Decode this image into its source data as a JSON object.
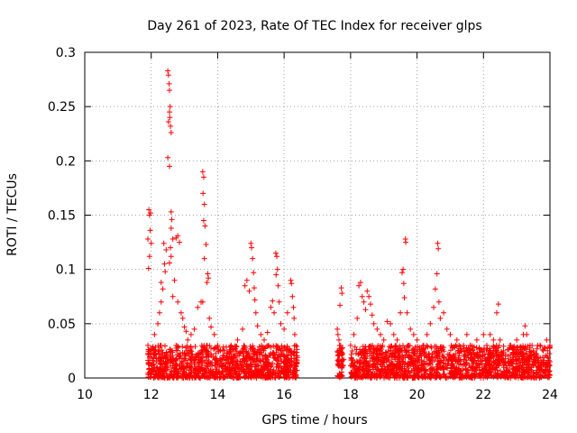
{
  "chart_data": {
    "type": "scatter",
    "title": "Day 261 of 2023, Rate Of TEC Index for receiver glps",
    "xlabel": "GPS time / hours",
    "ylabel": "ROTI / TECUs",
    "xlim": [
      10,
      24
    ],
    "ylim": [
      0,
      0.3
    ],
    "xticks": [
      10,
      12,
      14,
      16,
      18,
      20,
      22,
      24
    ],
    "yticks": [
      0,
      0.05,
      0.1,
      0.15,
      0.2,
      0.25,
      0.3
    ],
    "grid": true,
    "marker": "+",
    "series_color": "#ff0000",
    "data_description": "Dense cloud of ROTI samples between about 11.9 h and 24 h, gap between about 16.4 h and 17.6 h.",
    "points": [
      [
        11.9,
        0.128
      ],
      [
        11.92,
        0.101
      ],
      [
        11.95,
        0.112
      ],
      [
        11.97,
        0.136
      ],
      [
        12.0,
        0.124
      ],
      [
        11.93,
        0.155
      ],
      [
        11.95,
        0.15
      ],
      [
        11.98,
        0.152
      ],
      [
        11.9,
        0.03
      ],
      [
        11.95,
        0.022
      ],
      [
        12.1,
        0.04
      ],
      [
        12.2,
        0.05
      ],
      [
        12.25,
        0.06
      ],
      [
        12.3,
        0.07
      ],
      [
        12.35,
        0.082
      ],
      [
        12.4,
        0.105
      ],
      [
        12.42,
        0.098
      ],
      [
        12.45,
        0.118
      ],
      [
        12.38,
        0.124
      ],
      [
        12.3,
        0.088
      ],
      [
        12.5,
        0.283
      ],
      [
        12.52,
        0.279
      ],
      [
        12.54,
        0.271
      ],
      [
        12.55,
        0.265
      ],
      [
        12.57,
        0.25
      ],
      [
        12.55,
        0.245
      ],
      [
        12.56,
        0.24
      ],
      [
        12.58,
        0.232
      ],
      [
        12.6,
        0.226
      ],
      [
        12.52,
        0.236
      ],
      [
        12.5,
        0.203
      ],
      [
        12.55,
        0.195
      ],
      [
        12.6,
        0.153
      ],
      [
        12.62,
        0.146
      ],
      [
        12.6,
        0.138
      ],
      [
        12.65,
        0.128
      ],
      [
        12.58,
        0.12
      ],
      [
        12.6,
        0.112
      ],
      [
        12.55,
        0.106
      ],
      [
        12.7,
        0.09
      ],
      [
        12.75,
        0.129
      ],
      [
        12.8,
        0.131
      ],
      [
        12.85,
        0.125
      ],
      [
        12.9,
        0.06
      ],
      [
        12.95,
        0.055
      ],
      [
        13.0,
        0.047
      ],
      [
        13.05,
        0.043
      ],
      [
        13.1,
        0.035
      ],
      [
        12.8,
        0.07
      ],
      [
        12.65,
        0.075
      ],
      [
        13.2,
        0.04
      ],
      [
        13.3,
        0.045
      ],
      [
        13.4,
        0.065
      ],
      [
        13.5,
        0.07
      ],
      [
        13.55,
        0.19
      ],
      [
        13.58,
        0.185
      ],
      [
        13.56,
        0.17
      ],
      [
        13.6,
        0.16
      ],
      [
        13.58,
        0.145
      ],
      [
        13.62,
        0.14
      ],
      [
        13.65,
        0.123
      ],
      [
        13.6,
        0.11
      ],
      [
        13.7,
        0.096
      ],
      [
        13.72,
        0.092
      ],
      [
        13.68,
        0.088
      ],
      [
        13.55,
        0.07
      ],
      [
        13.75,
        0.055
      ],
      [
        13.8,
        0.047
      ],
      [
        13.9,
        0.04
      ],
      [
        14.0,
        0.03
      ],
      [
        14.2,
        0.025
      ],
      [
        14.4,
        0.03
      ],
      [
        14.5,
        0.02
      ],
      [
        14.6,
        0.035
      ],
      [
        14.75,
        0.045
      ],
      [
        14.82,
        0.085
      ],
      [
        14.88,
        0.09
      ],
      [
        14.95,
        0.08
      ],
      [
        15.0,
        0.124
      ],
      [
        15.02,
        0.12
      ],
      [
        15.05,
        0.11
      ],
      [
        15.08,
        0.097
      ],
      [
        15.1,
        0.083
      ],
      [
        15.12,
        0.072
      ],
      [
        15.15,
        0.06
      ],
      [
        15.2,
        0.048
      ],
      [
        15.3,
        0.04
      ],
      [
        15.4,
        0.035
      ],
      [
        15.5,
        0.042
      ],
      [
        15.6,
        0.065
      ],
      [
        15.65,
        0.071
      ],
      [
        15.7,
        0.06
      ],
      [
        15.75,
        0.115
      ],
      [
        15.78,
        0.112
      ],
      [
        15.8,
        0.1
      ],
      [
        15.76,
        0.095
      ],
      [
        15.82,
        0.085
      ],
      [
        15.85,
        0.07
      ],
      [
        15.9,
        0.05
      ],
      [
        16.0,
        0.045
      ],
      [
        16.1,
        0.06
      ],
      [
        16.2,
        0.09
      ],
      [
        16.22,
        0.087
      ],
      [
        16.25,
        0.075
      ],
      [
        16.28,
        0.065
      ],
      [
        16.3,
        0.055
      ],
      [
        16.32,
        0.04
      ],
      [
        16.35,
        0.03
      ],
      [
        16.3,
        0.018
      ],
      [
        16.2,
        0.025
      ],
      [
        17.6,
        0.045
      ],
      [
        17.62,
        0.04
      ],
      [
        17.65,
        0.035
      ],
      [
        17.7,
        0.03
      ],
      [
        17.72,
        0.083
      ],
      [
        17.74,
        0.078
      ],
      [
        17.68,
        0.067
      ],
      [
        17.7,
        0.025
      ],
      [
        17.65,
        0.015
      ],
      [
        17.75,
        0.01
      ],
      [
        18.0,
        0.03
      ],
      [
        18.1,
        0.04
      ],
      [
        18.2,
        0.055
      ],
      [
        18.25,
        0.085
      ],
      [
        18.3,
        0.088
      ],
      [
        18.35,
        0.075
      ],
      [
        18.4,
        0.07
      ],
      [
        18.45,
        0.063
      ],
      [
        18.5,
        0.08
      ],
      [
        18.55,
        0.075
      ],
      [
        18.6,
        0.068
      ],
      [
        18.65,
        0.058
      ],
      [
        18.7,
        0.05
      ],
      [
        18.8,
        0.045
      ],
      [
        18.9,
        0.04
      ],
      [
        19.0,
        0.035
      ],
      [
        19.1,
        0.052
      ],
      [
        19.2,
        0.05
      ],
      [
        19.3,
        0.04
      ],
      [
        19.4,
        0.035
      ],
      [
        19.5,
        0.06
      ],
      [
        19.55,
        0.097
      ],
      [
        19.58,
        0.1
      ],
      [
        19.6,
        0.087
      ],
      [
        19.62,
        0.074
      ],
      [
        19.65,
        0.128
      ],
      [
        19.66,
        0.125
      ],
      [
        19.7,
        0.06
      ],
      [
        19.8,
        0.045
      ],
      [
        19.9,
        0.04
      ],
      [
        20.0,
        0.035
      ],
      [
        20.2,
        0.03
      ],
      [
        20.3,
        0.04
      ],
      [
        20.4,
        0.05
      ],
      [
        20.5,
        0.065
      ],
      [
        20.55,
        0.082
      ],
      [
        20.6,
        0.096
      ],
      [
        20.62,
        0.124
      ],
      [
        20.64,
        0.119
      ],
      [
        20.66,
        0.07
      ],
      [
        20.7,
        0.055
      ],
      [
        20.8,
        0.06
      ],
      [
        20.9,
        0.045
      ],
      [
        21.0,
        0.04
      ],
      [
        21.2,
        0.035
      ],
      [
        21.4,
        0.03
      ],
      [
        21.5,
        0.04
      ],
      [
        21.6,
        0.03
      ],
      [
        21.8,
        0.035
      ],
      [
        22.0,
        0.04
      ],
      [
        22.1,
        0.03
      ],
      [
        22.2,
        0.04
      ],
      [
        22.3,
        0.035
      ],
      [
        22.4,
        0.06
      ],
      [
        22.45,
        0.068
      ],
      [
        22.5,
        0.035
      ],
      [
        22.6,
        0.025
      ],
      [
        22.8,
        0.03
      ],
      [
        23.0,
        0.035
      ],
      [
        23.2,
        0.04
      ],
      [
        23.25,
        0.048
      ],
      [
        23.3,
        0.04
      ],
      [
        23.4,
        0.03
      ],
      [
        23.5,
        0.025
      ],
      [
        23.6,
        0.02
      ],
      [
        23.7,
        0.03
      ],
      [
        23.8,
        0.025
      ],
      [
        23.9,
        0.035
      ],
      [
        24.0,
        0.03
      ],
      [
        24.0,
        0.015
      ]
    ],
    "noise_band": {
      "x_ranges": [
        [
          11.9,
          16.4
        ],
        [
          17.6,
          17.8
        ],
        [
          18.0,
          24.0
        ]
      ],
      "ymax": 0.03,
      "count": 2600,
      "seed": 261
    }
  }
}
